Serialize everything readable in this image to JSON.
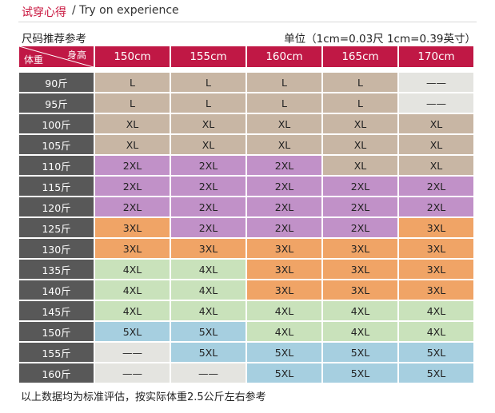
{
  "header": {
    "title_cn": "试穿心得",
    "title_en": "/ Try on experience"
  },
  "subheader": {
    "left": "尺码推荐参考",
    "right": "单位（1cm=0.03尺 1cm=0.39英寸）"
  },
  "table": {
    "corner_height": "身高",
    "corner_weight": "体重",
    "heights": [
      "150cm",
      "155cm",
      "160cm",
      "165cm",
      "170cm"
    ],
    "rows": [
      {
        "weight": "90斤",
        "sizes": [
          "L",
          "L",
          "L",
          "L",
          "——"
        ]
      },
      {
        "weight": "95斤",
        "sizes": [
          "L",
          "L",
          "L",
          "L",
          "——"
        ]
      },
      {
        "weight": "100斤",
        "sizes": [
          "XL",
          "XL",
          "XL",
          "XL",
          "XL"
        ]
      },
      {
        "weight": "105斤",
        "sizes": [
          "XL",
          "XL",
          "XL",
          "XL",
          "XL"
        ]
      },
      {
        "weight": "110斤",
        "sizes": [
          "2XL",
          "2XL",
          "2XL",
          "XL",
          "XL"
        ]
      },
      {
        "weight": "115斤",
        "sizes": [
          "2XL",
          "2XL",
          "2XL",
          "2XL",
          "2XL"
        ]
      },
      {
        "weight": "120斤",
        "sizes": [
          "2XL",
          "2XL",
          "2XL",
          "2XL",
          "2XL"
        ]
      },
      {
        "weight": "125斤",
        "sizes": [
          "3XL",
          "2XL",
          "2XL",
          "2XL",
          "3XL"
        ]
      },
      {
        "weight": "130斤",
        "sizes": [
          "3XL",
          "3XL",
          "3XL",
          "3XL",
          "3XL"
        ]
      },
      {
        "weight": "135斤",
        "sizes": [
          "4XL",
          "4XL",
          "3XL",
          "3XL",
          "3XL"
        ]
      },
      {
        "weight": "140斤",
        "sizes": [
          "4XL",
          "4XL",
          "3XL",
          "3XL",
          "3XL"
        ]
      },
      {
        "weight": "145斤",
        "sizes": [
          "4XL",
          "4XL",
          "4XL",
          "4XL",
          "4XL"
        ]
      },
      {
        "weight": "150斤",
        "sizes": [
          "5XL",
          "5XL",
          "4XL",
          "4XL",
          "4XL"
        ]
      },
      {
        "weight": "155斤",
        "sizes": [
          "——",
          "5XL",
          "5XL",
          "5XL",
          "5XL"
        ]
      },
      {
        "weight": "160斤",
        "sizes": [
          "——",
          "——",
          "5XL",
          "5XL",
          "5XL"
        ]
      }
    ]
  },
  "colors": {
    "accent": "#c01845",
    "weight_column": "#585858",
    "L": "#c8b6a4",
    "XL": "#c8b6a4",
    "2XL": "#c191c8",
    "3XL": "#f0a466",
    "4XL": "#c9e2bb",
    "5XL": "#a6cfe0",
    "na": "#e4e4e0"
  },
  "footer": {
    "note": "以上数据均为标准评估，按实际体重2.5公斤左右参考"
  }
}
